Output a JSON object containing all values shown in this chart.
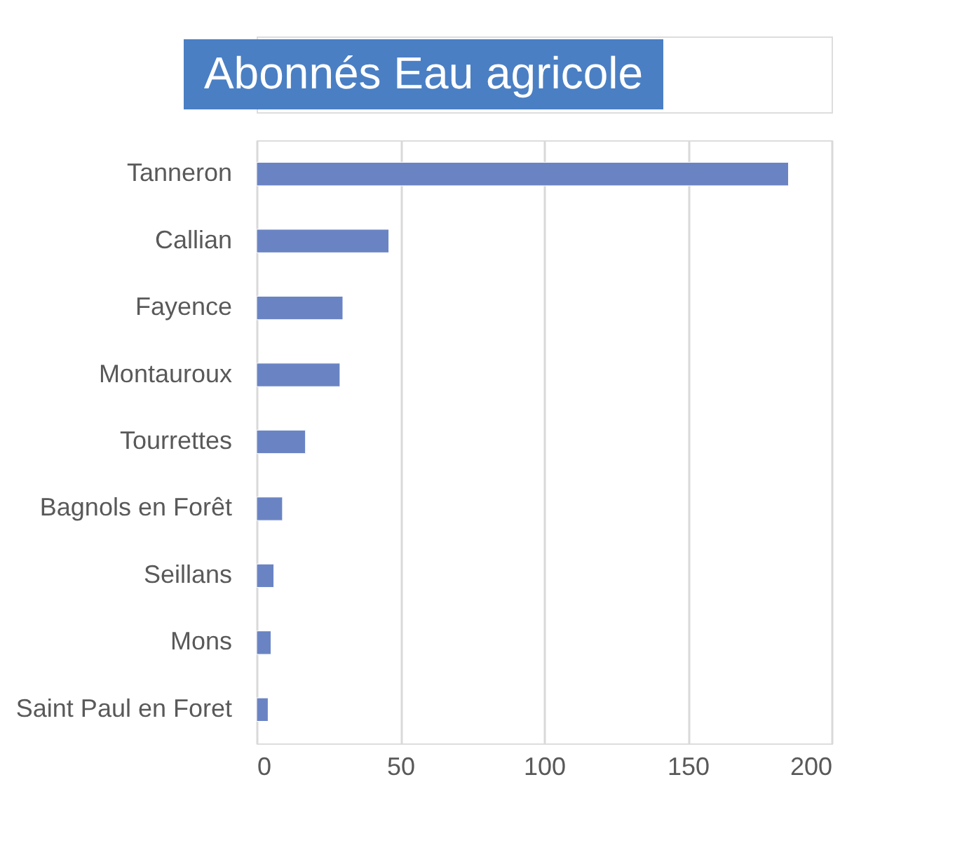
{
  "chart_data": {
    "type": "bar",
    "orientation": "horizontal",
    "title": "Abonnés Eau agricole",
    "categories": [
      "Tanneron",
      "Callian",
      "Fayence",
      "Montauroux",
      "Tourrettes",
      "Bagnols en Forêt",
      "Seillans",
      "Mons",
      "Saint Paul en Foret"
    ],
    "values": [
      185,
      46,
      30,
      29,
      17,
      9,
      6,
      5,
      4
    ],
    "color": "#6a84c3",
    "xlim": [
      0,
      200
    ],
    "xticks": [
      0,
      50,
      100,
      150,
      200
    ],
    "grid": "x"
  }
}
